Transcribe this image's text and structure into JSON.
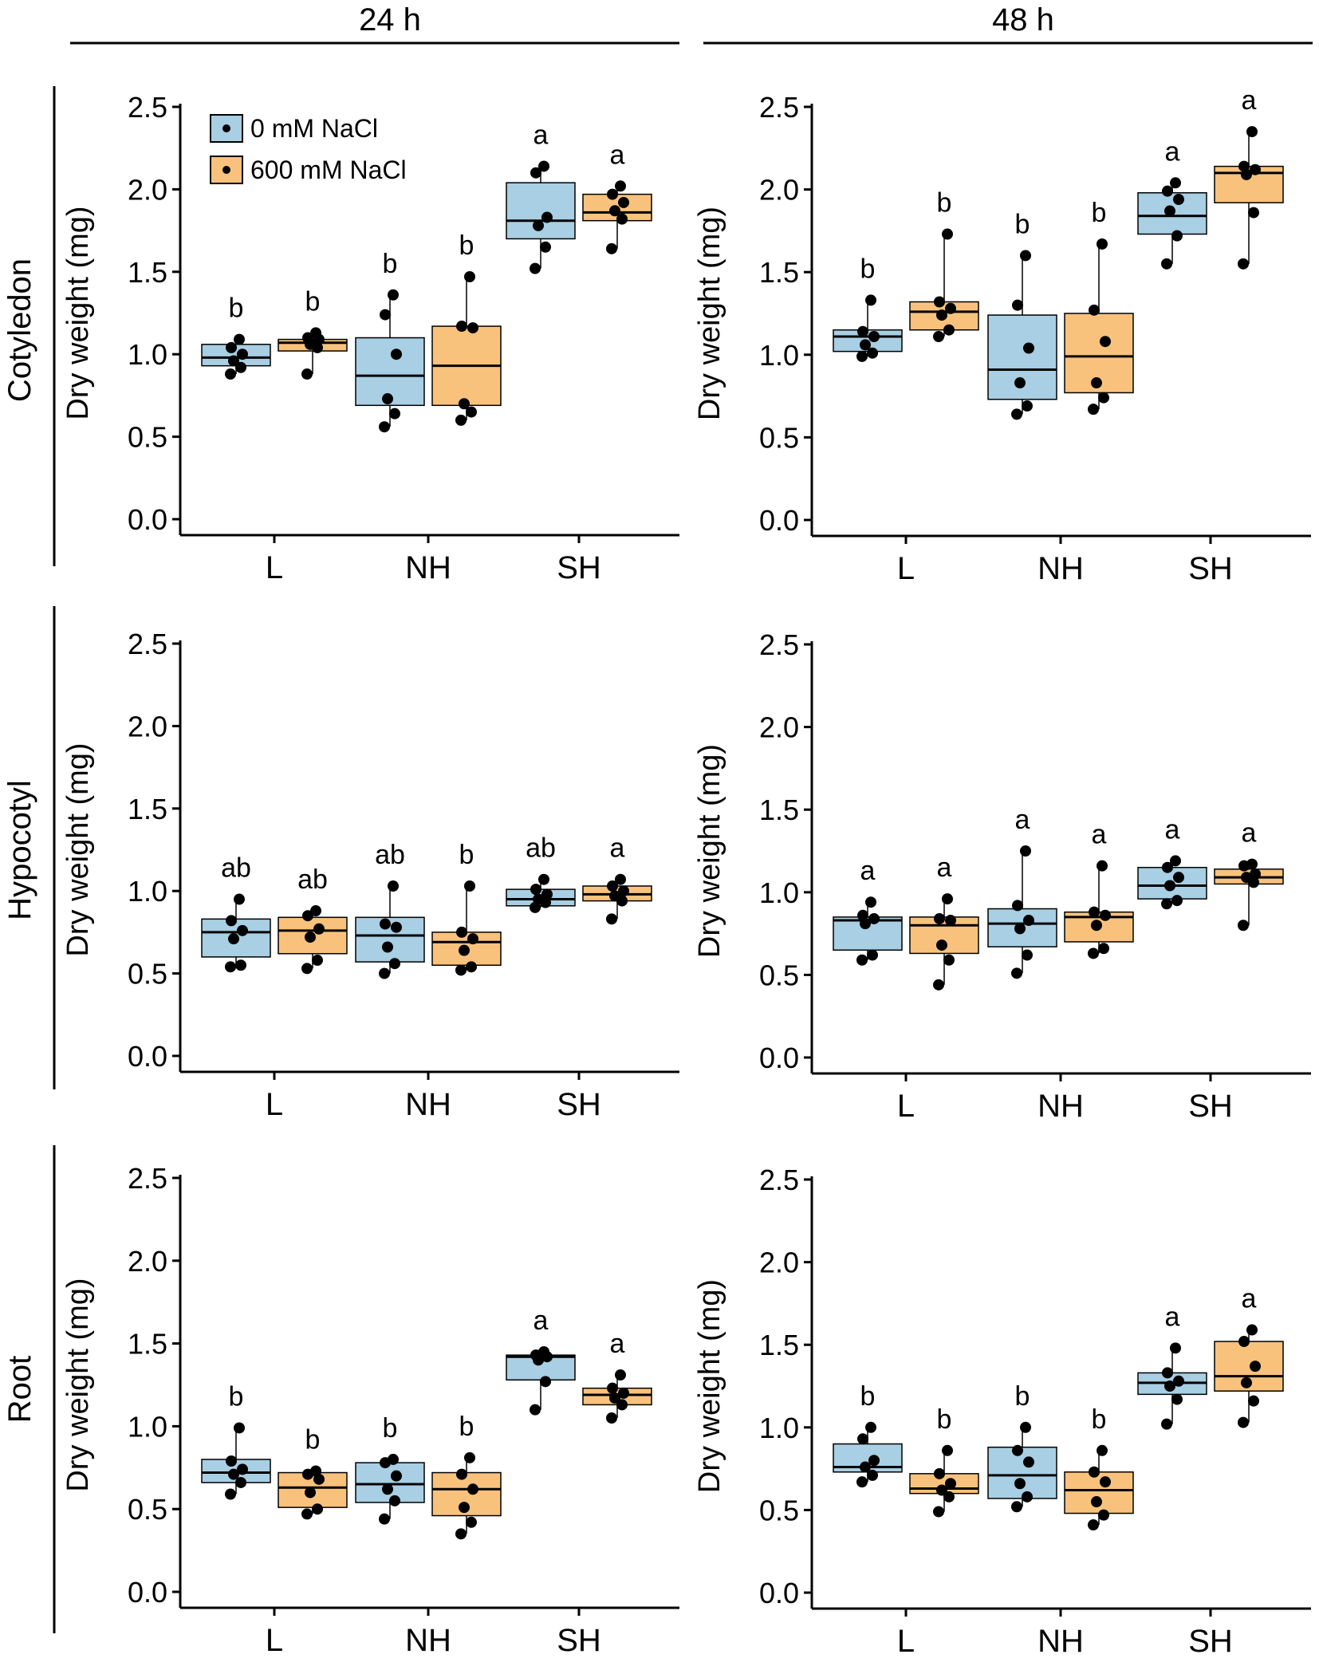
{
  "figure": {
    "columns": [
      {
        "key": "24h",
        "label": "24 h"
      },
      {
        "key": "48h",
        "label": "48 h"
      }
    ],
    "rows": [
      {
        "key": "cotyledon",
        "label": "Cotyledon"
      },
      {
        "key": "hypocotyl",
        "label": "Hypocotyl"
      },
      {
        "key": "root",
        "label": "Root"
      }
    ],
    "legend": [
      {
        "label": "0 mM NaCl",
        "color": "#a8cfe3"
      },
      {
        "label": "600 mM NaCl",
        "color": "#f9c27c"
      }
    ]
  },
  "chart_data": [
    {
      "type": "box",
      "row": "cotyledon",
      "time": "24h",
      "title": "24 h",
      "ylabel": "Dry weight (mg)",
      "ylim": [
        0,
        2.5
      ],
      "yticks": [
        "0.0",
        "0.5",
        "1.0",
        "1.5",
        "2.0",
        "2.5"
      ],
      "categories": [
        "L",
        "NH",
        "SH"
      ],
      "series": [
        {
          "name": "0 mM NaCl",
          "color": "#a8cfe3",
          "boxes": [
            {
              "q1": 0.93,
              "median": 0.98,
              "q3": 1.06,
              "wlo": 0.88,
              "whi": 1.09,
              "points": [
                0.88,
                0.92,
                0.96,
                1.0,
                1.04,
                1.09
              ],
              "letter": "b"
            },
            {
              "q1": 0.69,
              "median": 0.87,
              "q3": 1.1,
              "wlo": 0.56,
              "whi": 1.36,
              "points": [
                0.56,
                0.64,
                0.73,
                1.0,
                1.24,
                1.36
              ],
              "letter": "b"
            },
            {
              "q1": 1.7,
              "median": 1.81,
              "q3": 2.04,
              "wlo": 1.52,
              "whi": 2.14,
              "points": [
                1.52,
                1.65,
                1.78,
                1.83,
                2.1,
                2.14
              ],
              "letter": "a"
            }
          ]
        },
        {
          "name": "600 mM NaCl",
          "color": "#f9c27c",
          "boxes": [
            {
              "q1": 1.02,
              "median": 1.07,
              "q3": 1.09,
              "wlo": 0.88,
              "whi": 1.13,
              "points": [
                0.88,
                1.04,
                1.06,
                1.09,
                1.1,
                1.13
              ],
              "letter": "b"
            },
            {
              "q1": 0.69,
              "median": 0.93,
              "q3": 1.17,
              "wlo": 0.6,
              "whi": 1.47,
              "points": [
                0.6,
                0.65,
                0.7,
                1.16,
                1.17,
                1.47
              ],
              "letter": "b"
            },
            {
              "q1": 1.81,
              "median": 1.86,
              "q3": 1.97,
              "wlo": 1.64,
              "whi": 2.02,
              "points": [
                1.64,
                1.82,
                1.87,
                1.92,
                1.97,
                2.02
              ],
              "letter": "a"
            }
          ]
        }
      ]
    },
    {
      "type": "box",
      "row": "cotyledon",
      "time": "48h",
      "title": "48 h",
      "ylabel": "Dry weight (mg)",
      "ylim": [
        0,
        2.5
      ],
      "yticks": [
        "0.0",
        "0.5",
        "1.0",
        "1.5",
        "2.0",
        "2.5"
      ],
      "categories": [
        "L",
        "NH",
        "SH"
      ],
      "series": [
        {
          "name": "0 mM NaCl",
          "color": "#a8cfe3",
          "boxes": [
            {
              "q1": 1.02,
              "median": 1.11,
              "q3": 1.15,
              "wlo": 0.99,
              "whi": 1.33,
              "points": [
                0.99,
                1.01,
                1.06,
                1.11,
                1.14,
                1.33
              ],
              "letter": "b"
            },
            {
              "q1": 0.73,
              "median": 0.91,
              "q3": 1.24,
              "wlo": 0.64,
              "whi": 1.6,
              "points": [
                0.64,
                0.69,
                0.83,
                1.04,
                1.3,
                1.6
              ],
              "letter": "b"
            },
            {
              "q1": 1.73,
              "median": 1.84,
              "q3": 1.98,
              "wlo": 1.55,
              "whi": 2.04,
              "points": [
                1.55,
                1.72,
                1.87,
                1.94,
                1.99,
                2.04
              ],
              "letter": "a"
            }
          ]
        },
        {
          "name": "600 mM NaCl",
          "color": "#f9c27c",
          "boxes": [
            {
              "q1": 1.15,
              "median": 1.26,
              "q3": 1.32,
              "wlo": 1.11,
              "whi": 1.73,
              "points": [
                1.11,
                1.15,
                1.24,
                1.28,
                1.32,
                1.73
              ],
              "letter": "b"
            },
            {
              "q1": 0.77,
              "median": 0.99,
              "q3": 1.25,
              "wlo": 0.67,
              "whi": 1.67,
              "points": [
                0.67,
                0.74,
                0.83,
                1.08,
                1.27,
                1.67
              ],
              "letter": "b"
            },
            {
              "q1": 1.92,
              "median": 2.1,
              "q3": 2.14,
              "wlo": 1.55,
              "whi": 2.35,
              "points": [
                1.55,
                1.86,
                2.09,
                2.12,
                2.14,
                2.35
              ],
              "letter": "a"
            }
          ]
        }
      ]
    },
    {
      "type": "box",
      "row": "hypocotyl",
      "time": "24h",
      "title": "24 h",
      "ylabel": "Dry weight (mg)",
      "ylim": [
        0,
        2.5
      ],
      "yticks": [
        "0.0",
        "0.5",
        "1.0",
        "1.5",
        "2.0",
        "2.5"
      ],
      "categories": [
        "L",
        "NH",
        "SH"
      ],
      "series": [
        {
          "name": "0 mM NaCl",
          "color": "#a8cfe3",
          "boxes": [
            {
              "q1": 0.6,
              "median": 0.75,
              "q3": 0.83,
              "wlo": 0.54,
              "whi": 0.95,
              "points": [
                0.54,
                0.55,
                0.71,
                0.76,
                0.82,
                0.95
              ],
              "letter": "ab"
            },
            {
              "q1": 0.57,
              "median": 0.73,
              "q3": 0.84,
              "wlo": 0.5,
              "whi": 1.03,
              "points": [
                0.5,
                0.56,
                0.66,
                0.78,
                0.8,
                1.03
              ],
              "letter": "ab"
            },
            {
              "q1": 0.91,
              "median": 0.95,
              "q3": 1.01,
              "wlo": 0.9,
              "whi": 1.07,
              "points": [
                0.9,
                0.93,
                0.95,
                0.98,
                1.01,
                1.07
              ],
              "letter": "ab"
            }
          ]
        },
        {
          "name": "600 mM NaCl",
          "color": "#f9c27c",
          "boxes": [
            {
              "q1": 0.62,
              "median": 0.76,
              "q3": 0.84,
              "wlo": 0.53,
              "whi": 0.88,
              "points": [
                0.53,
                0.58,
                0.72,
                0.77,
                0.85,
                0.88
              ],
              "letter": "ab"
            },
            {
              "q1": 0.55,
              "median": 0.69,
              "q3": 0.75,
              "wlo": 0.52,
              "whi": 1.03,
              "points": [
                0.52,
                0.54,
                0.64,
                0.71,
                0.75,
                1.03
              ],
              "letter": "b"
            },
            {
              "q1": 0.94,
              "median": 0.98,
              "q3": 1.03,
              "wlo": 0.83,
              "whi": 1.07,
              "points": [
                0.83,
                0.94,
                0.97,
                1.0,
                1.03,
                1.07
              ],
              "letter": "a"
            }
          ]
        }
      ]
    },
    {
      "type": "box",
      "row": "hypocotyl",
      "time": "48h",
      "title": "48 h",
      "ylabel": "Dry weight (mg)",
      "ylim": [
        0,
        2.5
      ],
      "yticks": [
        "0.0",
        "0.5",
        "1.0",
        "1.5",
        "2.0",
        "2.5"
      ],
      "categories": [
        "L",
        "NH",
        "SH"
      ],
      "series": [
        {
          "name": "0 mM NaCl",
          "color": "#a8cfe3",
          "boxes": [
            {
              "q1": 0.65,
              "median": 0.83,
              "q3": 0.85,
              "wlo": 0.59,
              "whi": 0.94,
              "points": [
                0.59,
                0.62,
                0.81,
                0.84,
                0.86,
                0.94
              ],
              "letter": "a"
            },
            {
              "q1": 0.67,
              "median": 0.81,
              "q3": 0.9,
              "wlo": 0.51,
              "whi": 1.25,
              "points": [
                0.51,
                0.62,
                0.78,
                0.83,
                0.92,
                1.25
              ],
              "letter": "a"
            },
            {
              "q1": 0.96,
              "median": 1.04,
              "q3": 1.15,
              "wlo": 0.93,
              "whi": 1.19,
              "points": [
                0.93,
                0.95,
                1.04,
                1.09,
                1.15,
                1.19
              ],
              "letter": "a"
            }
          ]
        },
        {
          "name": "600 mM NaCl",
          "color": "#f9c27c",
          "boxes": [
            {
              "q1": 0.63,
              "median": 0.8,
              "q3": 0.85,
              "wlo": 0.44,
              "whi": 0.96,
              "points": [
                0.44,
                0.59,
                0.68,
                0.83,
                0.84,
                0.96
              ],
              "letter": "a"
            },
            {
              "q1": 0.7,
              "median": 0.85,
              "q3": 0.88,
              "wlo": 0.63,
              "whi": 1.16,
              "points": [
                0.63,
                0.66,
                0.8,
                0.86,
                0.88,
                1.16
              ],
              "letter": "a"
            },
            {
              "q1": 1.05,
              "median": 1.09,
              "q3": 1.14,
              "wlo": 0.8,
              "whi": 1.17,
              "points": [
                0.8,
                1.06,
                1.09,
                1.11,
                1.16,
                1.17
              ],
              "letter": "a"
            }
          ]
        }
      ]
    },
    {
      "type": "box",
      "row": "root",
      "time": "24h",
      "title": "24 h",
      "ylabel": "Dry weight (mg)",
      "ylim": [
        0,
        2.5
      ],
      "yticks": [
        "0.0",
        "0.5",
        "1.0",
        "1.5",
        "2.0",
        "2.5"
      ],
      "categories": [
        "L",
        "NH",
        "SH"
      ],
      "series": [
        {
          "name": "0 mM NaCl",
          "color": "#a8cfe3",
          "boxes": [
            {
              "q1": 0.66,
              "median": 0.72,
              "q3": 0.8,
              "wlo": 0.59,
              "whi": 0.99,
              "points": [
                0.59,
                0.66,
                0.71,
                0.74,
                0.79,
                0.99
              ],
              "letter": "b"
            },
            {
              "q1": 0.54,
              "median": 0.65,
              "q3": 0.78,
              "wlo": 0.44,
              "whi": 0.8,
              "points": [
                0.44,
                0.55,
                0.62,
                0.7,
                0.78,
                0.8
              ],
              "letter": "b"
            },
            {
              "q1": 1.28,
              "median": 1.42,
              "q3": 1.43,
              "wlo": 1.1,
              "whi": 1.45,
              "points": [
                1.1,
                1.27,
                1.4,
                1.42,
                1.43,
                1.45
              ],
              "letter": "a"
            }
          ]
        },
        {
          "name": "600 mM NaCl",
          "color": "#f9c27c",
          "boxes": [
            {
              "q1": 0.51,
              "median": 0.63,
              "q3": 0.72,
              "wlo": 0.47,
              "whi": 0.73,
              "points": [
                0.47,
                0.5,
                0.6,
                0.68,
                0.71,
                0.73
              ],
              "letter": "b"
            },
            {
              "q1": 0.46,
              "median": 0.62,
              "q3": 0.72,
              "wlo": 0.35,
              "whi": 0.81,
              "points": [
                0.35,
                0.42,
                0.51,
                0.62,
                0.71,
                0.81
              ],
              "letter": "b"
            },
            {
              "q1": 1.13,
              "median": 1.19,
              "q3": 1.23,
              "wlo": 1.05,
              "whi": 1.31,
              "points": [
                1.05,
                1.13,
                1.17,
                1.2,
                1.23,
                1.31
              ],
              "letter": "a"
            }
          ]
        }
      ]
    },
    {
      "type": "box",
      "row": "root",
      "time": "48h",
      "title": "48 h",
      "ylabel": "Dry weight (mg)",
      "ylim": [
        0,
        2.5
      ],
      "yticks": [
        "0.0",
        "0.5",
        "1.0",
        "1.5",
        "2.0",
        "2.5"
      ],
      "categories": [
        "L",
        "NH",
        "SH"
      ],
      "series": [
        {
          "name": "0 mM NaCl",
          "color": "#a8cfe3",
          "boxes": [
            {
              "q1": 0.73,
              "median": 0.76,
              "q3": 0.9,
              "wlo": 0.67,
              "whi": 1.0,
              "points": [
                0.67,
                0.71,
                0.76,
                0.8,
                0.93,
                1.0
              ],
              "letter": "b"
            },
            {
              "q1": 0.57,
              "median": 0.71,
              "q3": 0.88,
              "wlo": 0.52,
              "whi": 1.0,
              "points": [
                0.52,
                0.58,
                0.66,
                0.79,
                0.86,
                1.0
              ],
              "letter": "b"
            },
            {
              "q1": 1.2,
              "median": 1.27,
              "q3": 1.33,
              "wlo": 1.02,
              "whi": 1.48,
              "points": [
                1.02,
                1.17,
                1.25,
                1.28,
                1.33,
                1.48
              ],
              "letter": "a"
            }
          ]
        },
        {
          "name": "600 mM NaCl",
          "color": "#f9c27c",
          "boxes": [
            {
              "q1": 0.6,
              "median": 0.63,
              "q3": 0.72,
              "wlo": 0.49,
              "whi": 0.86,
              "points": [
                0.49,
                0.58,
                0.62,
                0.66,
                0.72,
                0.86
              ],
              "letter": "b"
            },
            {
              "q1": 0.48,
              "median": 0.62,
              "q3": 0.73,
              "wlo": 0.41,
              "whi": 0.86,
              "points": [
                0.41,
                0.47,
                0.55,
                0.67,
                0.73,
                0.86
              ],
              "letter": "b"
            },
            {
              "q1": 1.22,
              "median": 1.31,
              "q3": 1.52,
              "wlo": 1.03,
              "whi": 1.59,
              "points": [
                1.03,
                1.16,
                1.27,
                1.37,
                1.52,
                1.59
              ],
              "letter": "a"
            }
          ]
        }
      ]
    }
  ]
}
